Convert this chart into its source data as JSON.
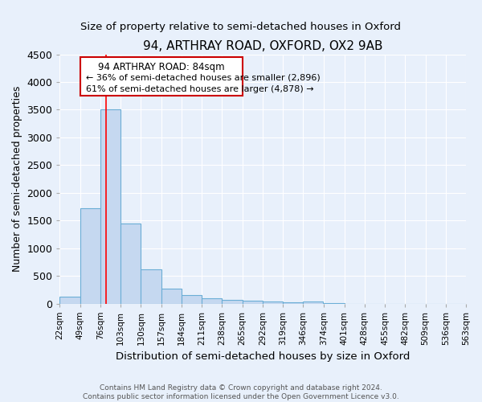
{
  "title": "94, ARTHRAY ROAD, OXFORD, OX2 9AB",
  "subtitle": "Size of property relative to semi-detached houses in Oxford",
  "xlabel": "Distribution of semi-detached houses by size in Oxford",
  "ylabel": "Number of semi-detached properties",
  "footer_line1": "Contains HM Land Registry data © Crown copyright and database right 2024.",
  "footer_line2": "Contains public sector information licensed under the Open Government Licence v3.0.",
  "bin_edges": [
    22,
    49,
    76,
    103,
    130,
    157,
    184,
    211,
    238,
    265,
    292,
    319,
    346,
    374,
    401,
    428,
    455,
    482,
    509,
    536,
    563
  ],
  "bar_heights": [
    130,
    1720,
    3500,
    1440,
    620,
    275,
    150,
    90,
    70,
    45,
    30,
    20,
    40,
    5,
    0,
    0,
    0,
    0,
    0,
    0
  ],
  "bar_color": "#c5d8f0",
  "bar_edge_color": "#6baed6",
  "bg_color": "#e8f0fb",
  "grid_color": "#d0daea",
  "red_line_x": 84,
  "annotation_line1": "94 ARTHRAY ROAD: 84sqm",
  "annotation_line2": "← 36% of semi-detached houses are smaller (2,896)",
  "annotation_line3": "61% of semi-detached houses are larger (4,878) →",
  "annotation_box_facecolor": "#ffffff",
  "annotation_box_edgecolor": "#cc0000",
  "ylim": [
    0,
    4500
  ],
  "yticks": [
    0,
    500,
    1000,
    1500,
    2000,
    2500,
    3000,
    3500,
    4000,
    4500
  ],
  "title_fontsize": 11,
  "subtitle_fontsize": 9.5,
  "tick_label_fontsize": 7.5,
  "ylabel_fontsize": 9,
  "xlabel_fontsize": 9.5,
  "annotation_fontsize": 8.5
}
